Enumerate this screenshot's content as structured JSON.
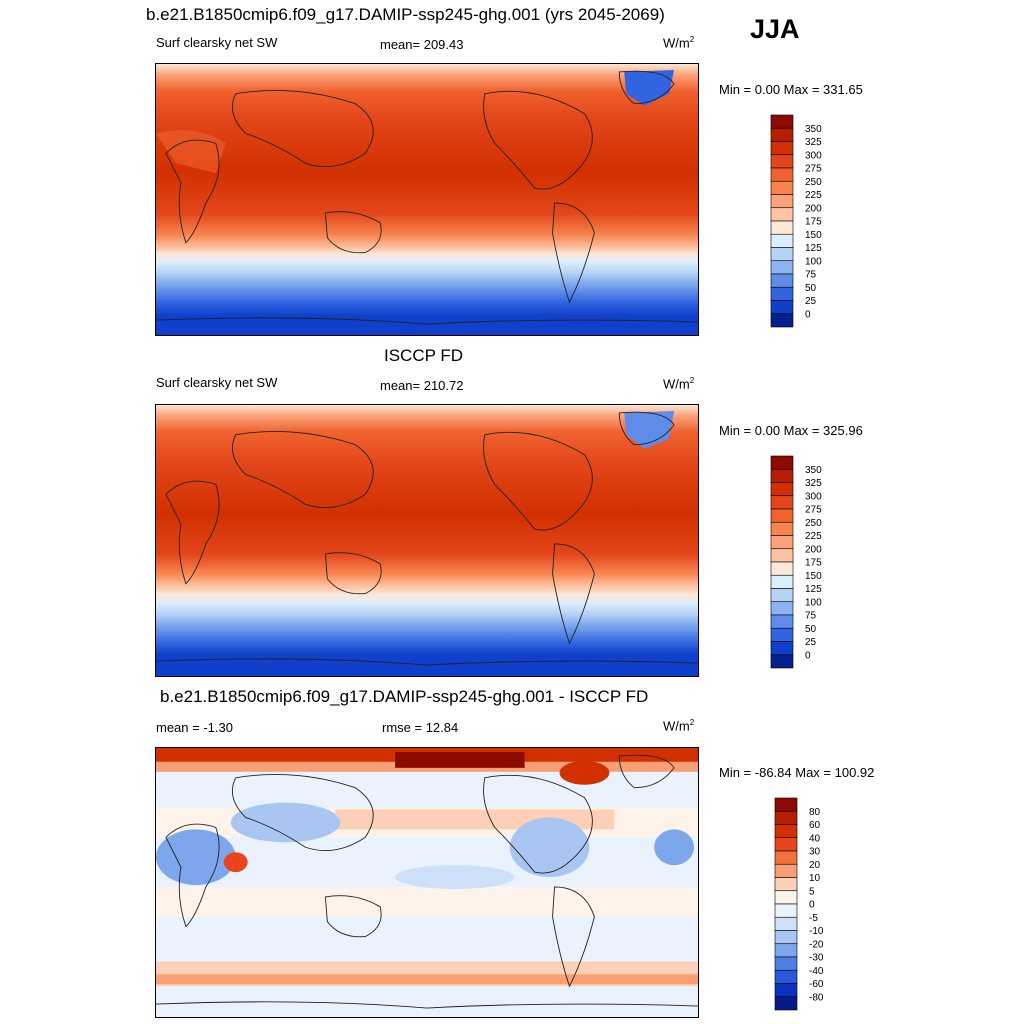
{
  "season": "JJA",
  "panels": [
    {
      "title": "b.e21.B1850cmip6.f09_g17.DAMIP-ssp245-ghg.001 (yrs 2045-2069)",
      "left_text": "Surf clearsky net SW",
      "center_text": "mean= 209.43",
      "units": "W/m",
      "units_sup": "2",
      "minmax": "Min =   0.00 Max = 331.65",
      "colorbar": {
        "labels": [
          "350",
          "325",
          "300",
          "275",
          "250",
          "225",
          "200",
          "175",
          "150",
          "125",
          "100",
          "75",
          "50",
          "25",
          "0"
        ],
        "colors": [
          "#8c0a00",
          "#b51e00",
          "#d23000",
          "#e2461a",
          "#f0622e",
          "#f7844f",
          "#fba27a",
          "#fdc4a4",
          "#fbe8d7",
          "#ddeefb",
          "#b6d3f5",
          "#8db4f0",
          "#5e8ce8",
          "#3064e0",
          "#0f3fcb",
          "#04208e"
        ]
      }
    },
    {
      "title": "ISCCP FD",
      "left_text": "Surf clearsky net SW",
      "center_text": "mean= 210.72",
      "units": "W/m",
      "units_sup": "2",
      "minmax": "Min =   0.00 Max = 325.96",
      "colorbar": {
        "labels": [
          "350",
          "325",
          "300",
          "275",
          "250",
          "225",
          "200",
          "175",
          "150",
          "125",
          "100",
          "75",
          "50",
          "25",
          "0"
        ],
        "colors": [
          "#8c0a00",
          "#b51e00",
          "#d23000",
          "#e2461a",
          "#f0622e",
          "#f7844f",
          "#fba27a",
          "#fdc4a4",
          "#fbe8d7",
          "#ddeefb",
          "#b6d3f5",
          "#8db4f0",
          "#5e8ce8",
          "#3064e0",
          "#0f3fcb",
          "#04208e"
        ]
      }
    },
    {
      "title": "b.e21.B1850cmip6.f09_g17.DAMIP-ssp245-ghg.001 - ISCCP FD",
      "left_text": "mean =  -1.30",
      "center_text": "rmse =  12.84",
      "units": "W/m",
      "units_sup": "2",
      "minmax": "Min = -86.84 Max = 100.92",
      "colorbar": {
        "labels": [
          "80",
          "60",
          "40",
          "30",
          "20",
          "10",
          "5",
          "0",
          "-5",
          "-10",
          "-20",
          "-30",
          "-40",
          "-60",
          "-80"
        ],
        "colors": [
          "#8c0a00",
          "#b51e00",
          "#d23000",
          "#e8451c",
          "#f4703d",
          "#f99f76",
          "#fcd0b6",
          "#fdf3ea",
          "#eaf3fd",
          "#cde0f7",
          "#a9c6f2",
          "#7ea6ec",
          "#4e7fe4",
          "#2658dc",
          "#0b32bf",
          "#061a88"
        ]
      }
    }
  ]
}
